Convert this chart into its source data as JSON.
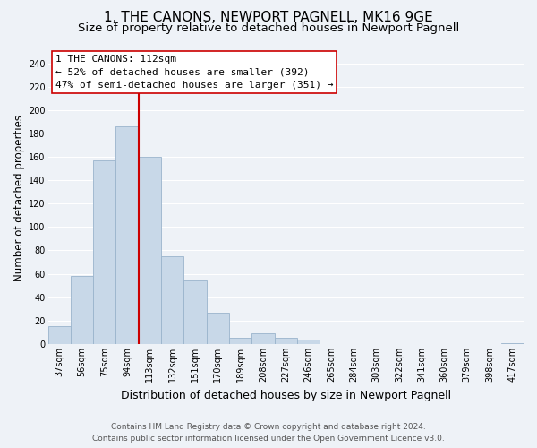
{
  "title": "1, THE CANONS, NEWPORT PAGNELL, MK16 9GE",
  "subtitle": "Size of property relative to detached houses in Newport Pagnell",
  "xlabel": "Distribution of detached houses by size in Newport Pagnell",
  "ylabel": "Number of detached properties",
  "bin_labels": [
    "37sqm",
    "56sqm",
    "75sqm",
    "94sqm",
    "113sqm",
    "132sqm",
    "151sqm",
    "170sqm",
    "189sqm",
    "208sqm",
    "227sqm",
    "246sqm",
    "265sqm",
    "284sqm",
    "303sqm",
    "322sqm",
    "341sqm",
    "360sqm",
    "379sqm",
    "398sqm",
    "417sqm"
  ],
  "bar_values": [
    15,
    58,
    157,
    186,
    160,
    75,
    54,
    27,
    5,
    9,
    5,
    4,
    0,
    0,
    0,
    0,
    0,
    0,
    0,
    0,
    1
  ],
  "bar_color": "#c8d8e8",
  "bar_edgecolor": "#9ab4cc",
  "vline_color": "#cc0000",
  "vline_x": 3.5,
  "annotation_text_line1": "1 THE CANONS: 112sqm",
  "annotation_text_line2": "← 52% of detached houses are smaller (392)",
  "annotation_text_line3": "47% of semi-detached houses are larger (351) →",
  "ylim": [
    0,
    250
  ],
  "yticks": [
    0,
    20,
    40,
    60,
    80,
    100,
    120,
    140,
    160,
    180,
    200,
    220,
    240
  ],
  "footnote_line1": "Contains HM Land Registry data © Crown copyright and database right 2024.",
  "footnote_line2": "Contains public sector information licensed under the Open Government Licence v3.0.",
  "background_color": "#eef2f7",
  "grid_color": "#ffffff",
  "title_fontsize": 11,
  "subtitle_fontsize": 9.5,
  "ylabel_fontsize": 8.5,
  "xlabel_fontsize": 9,
  "tick_fontsize": 7,
  "annotation_fontsize": 8,
  "footnote_fontsize": 6.5
}
